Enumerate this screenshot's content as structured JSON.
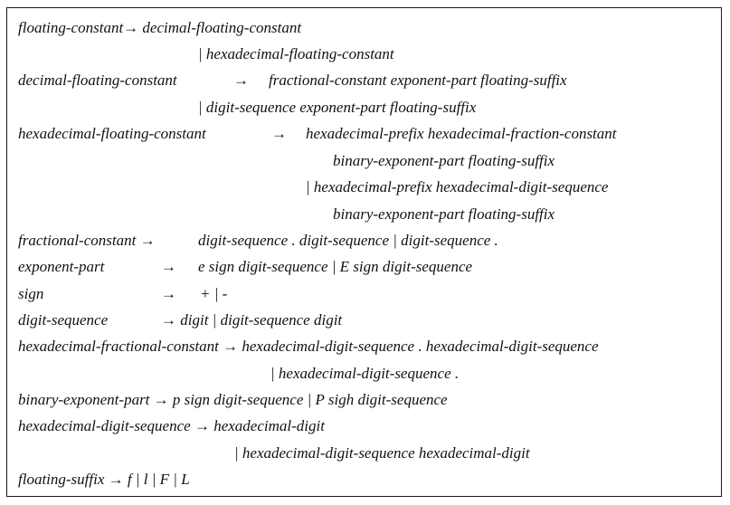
{
  "grammar": {
    "lines": [
      "floating-constant→ decimal-floating-constant",
      "| hexadecimal-floating-constant",
      "decimal-floating-constant",
      "→",
      "fractional-constant exponent-part floating-suffix",
      "| digit-sequence exponent-part floating-suffix",
      "hexadecimal-floating-constant",
      "→",
      "hexadecimal-prefix hexadecimal-fraction-constant",
      "binary-exponent-part floating-suffix",
      "| hexadecimal-prefix hexadecimal-digit-sequence",
      "binary-exponent-part floating-suffix",
      "fractional-constant →",
      "digit-sequence . digit-sequence | digit-sequence .",
      "exponent-part",
      "→",
      "e sign digit-sequence | E sign digit-sequence",
      "sign",
      "→",
      "+ | -",
      "digit-sequence",
      "→ digit | digit-sequence digit",
      "hexadecimal-fractional-constant → hexadecimal-digit-sequence . hexadecimal-digit-sequence",
      "| hexadecimal-digit-sequence .",
      "binary-exponent-part → p sign digit-sequence | P sigh digit-sequence",
      "hexadecimal-digit-sequence → hexadecimal-digit",
      "| hexadecimal-digit-sequence hexadecimal-digit",
      "floating-suffix → f | l | F | L"
    ]
  }
}
